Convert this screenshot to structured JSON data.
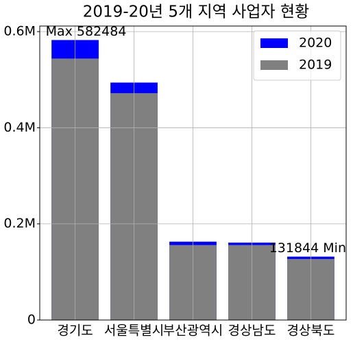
{
  "chart_data": {
    "type": "bar",
    "title": "2019-20년 5개 지역 사업자 현황",
    "categories": [
      "경기도",
      "서울특별시",
      "부산광역시",
      "경상남도",
      "경상북도"
    ],
    "series": [
      {
        "name": "2020",
        "color": "#0000ff",
        "values": [
          582484,
          494000,
          163000,
          161000,
          131844
        ]
      },
      {
        "name": "2019",
        "color": "#808080",
        "values": [
          544000,
          472000,
          156000,
          156000,
          127000
        ]
      }
    ],
    "ylim": [
      0,
      611608
    ],
    "yticks": [
      0,
      {
        "value": 200000,
        "label": "0.2M"
      },
      {
        "value": 400000,
        "label": "0.4M"
      },
      {
        "value": 600000,
        "label": "0.6M"
      }
    ],
    "grid": true,
    "legend": "upper right",
    "annotations": [
      {
        "text": "Max 582484",
        "color": "#ff0000"
      },
      {
        "text": "131844 Min",
        "color": "#ff0000"
      }
    ]
  }
}
